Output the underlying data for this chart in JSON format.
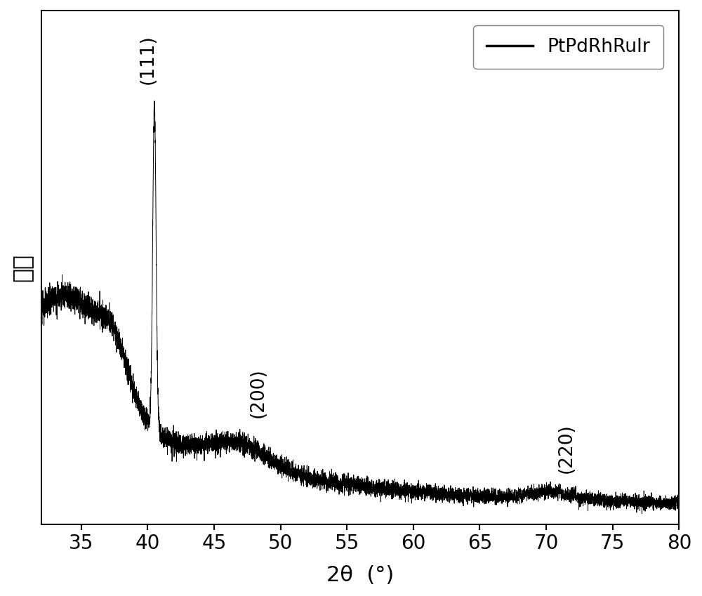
{
  "xlabel": "2θ  (°)",
  "ylabel": "强度",
  "xmin": 32,
  "xmax": 80,
  "legend_label": "PtPdRhRuIr",
  "annotation_111": "(111)",
  "annotation_200": "(200)",
  "annotation_220": "(220)",
  "line_color": "#000000",
  "background_color": "#ffffff",
  "fontsize_ticks": 20,
  "fontsize_label": 22,
  "fontsize_annotation": 19,
  "xticks": [
    35,
    40,
    45,
    50,
    55,
    60,
    65,
    70,
    75,
    80
  ]
}
